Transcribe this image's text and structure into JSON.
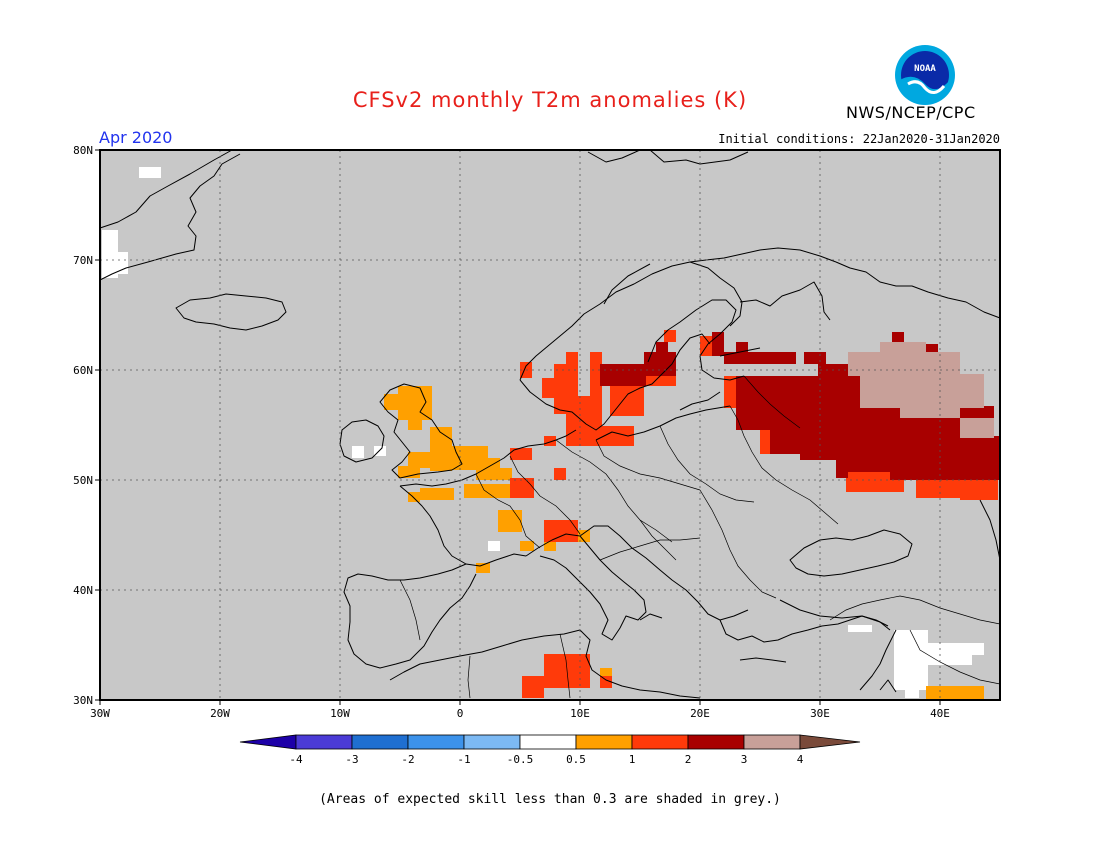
{
  "header": {
    "title": "CFSv2 monthly T2m anomalies (K)",
    "month": "Apr 2020",
    "initial_conditions": "Initial conditions: 22Jan2020-31Jan2020",
    "organization": "NWS/NCEP/CPC",
    "logo_text": "NOAA"
  },
  "map": {
    "extent": {
      "lon": [
        -30,
        45
      ],
      "lat": [
        30,
        80
      ]
    },
    "lat_labels": [
      "80N",
      "70N",
      "60N",
      "50N",
      "40N",
      "30N"
    ],
    "lon_labels": [
      "30W",
      "20W",
      "10W",
      "0",
      "10E",
      "20E",
      "30E",
      "40E"
    ],
    "background_color": "#c8c8c8",
    "land_outline_color": "#000000",
    "anomaly_regions": [
      {
        "area": "Greenland tip",
        "class": "white"
      },
      {
        "area": "Eastern Greenland coast",
        "class": "white"
      },
      {
        "area": "Scotland / Ireland",
        "class": "0.5-1"
      },
      {
        "area": "England / Benelux / northern France",
        "class": "0.5-1"
      },
      {
        "area": "Southern France",
        "class": "0.5-1"
      },
      {
        "area": "Southern Norway / Sweden / Denmark",
        "class": "1-2"
      },
      {
        "area": "Central Sweden / Finland",
        "class": "2-3"
      },
      {
        "area": "Western Russia / Belarus / Baltics",
        "class": "2-3"
      },
      {
        "area": "North-eastern Russia",
        "class": "3-4"
      },
      {
        "area": "Ukraine / southern Russia",
        "class": "1-2"
      },
      {
        "area": "Tunisia / Algeria",
        "class": "1-2"
      },
      {
        "area": "Levant",
        "class": "white"
      },
      {
        "area": "Arabian peninsula edge",
        "class": "0.5-1"
      }
    ]
  },
  "legend": {
    "labels": [
      "-4",
      "-3",
      "-2",
      "-1",
      "-0.5",
      "0.5",
      "1",
      "2",
      "3",
      "4"
    ],
    "colors": [
      "#1d00a8",
      "#4b3bd6",
      "#1f6fd1",
      "#3c92ea",
      "#7cb9f3",
      "#ffffff",
      "#ffa000",
      "#ff3a0a",
      "#a80000",
      "#c8a099",
      "#7a4a3a"
    ],
    "left_arrow_color": "#1d00a8",
    "right_arrow_color": "#7a4a3a"
  },
  "footnote": "(Areas of expected skill less than 0.3 are shaded in grey.)"
}
